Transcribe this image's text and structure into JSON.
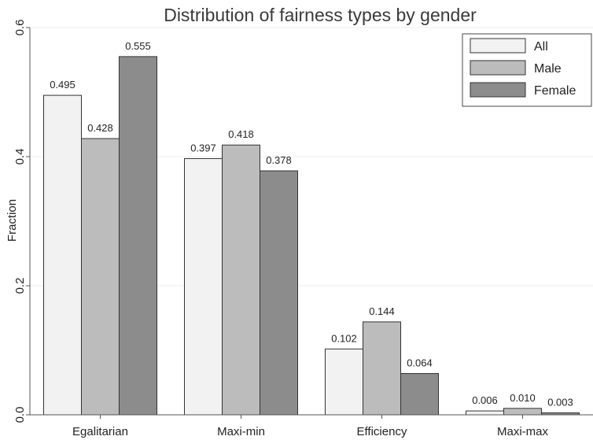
{
  "chart_data": {
    "type": "bar",
    "title": "Distribution of fairness types by gender",
    "xlabel": "",
    "ylabel": "Fraction",
    "categories": [
      "Egalitarian",
      "Maxi-min",
      "Efficiency",
      "Maxi-max"
    ],
    "series": [
      {
        "name": "All",
        "values": [
          0.495,
          0.397,
          0.102,
          0.006
        ],
        "labels": [
          "0.495",
          "0.397",
          "0.102",
          "0.006"
        ],
        "color": "#f2f2f2"
      },
      {
        "name": "Male",
        "values": [
          0.428,
          0.418,
          0.144,
          0.01
        ],
        "labels": [
          "0.428",
          "0.418",
          "0.144",
          "0.010"
        ],
        "color": "#bcbcbc"
      },
      {
        "name": "Female",
        "values": [
          0.555,
          0.378,
          0.064,
          0.003
        ],
        "labels": [
          "0.555",
          "0.378",
          "0.064",
          "0.003"
        ],
        "color": "#8c8c8c"
      }
    ],
    "ylim": [
      0,
      0.6
    ],
    "yticks": [
      0.0,
      0.2,
      0.4,
      0.6
    ],
    "ytick_labels": [
      "0.0",
      "0.2",
      "0.4",
      "0.6"
    ],
    "grid": true,
    "legend_position": "top-right"
  }
}
